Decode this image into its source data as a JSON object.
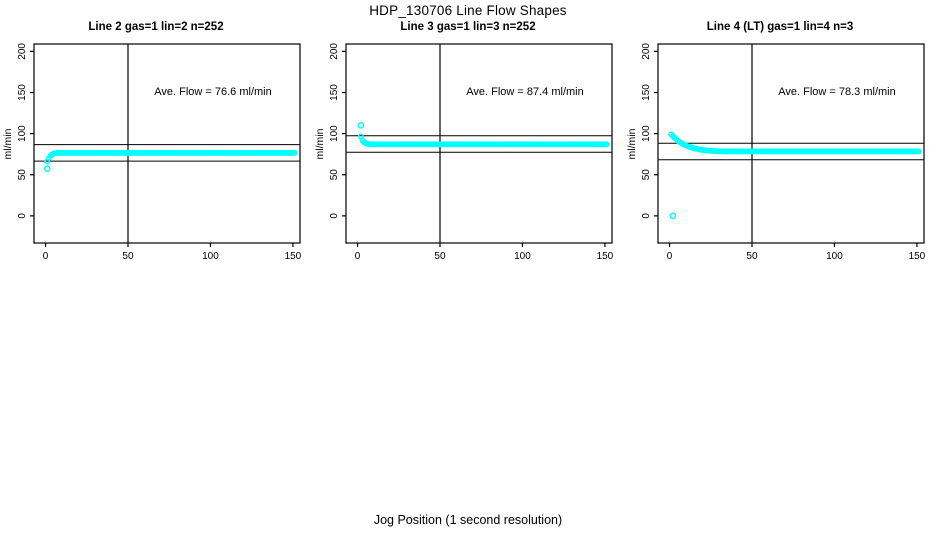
{
  "page": {
    "title": "HDP_130706  Line Flow Shapes",
    "xlabel": "Jog Position (1 second resolution)"
  },
  "style": {
    "point_color": "#00FFFF",
    "axis_color": "#000000",
    "background": "#FFFFFF"
  },
  "chart_data": [
    {
      "type": "scatter",
      "title": "Line 2 gas=1 lin=2 n=252",
      "annotation": "Ave. Flow =  76.6  ml/min",
      "ave_flow_ml_min": 76.6,
      "n": 252,
      "ylabel": "ml/min",
      "x_ticks": [
        0,
        50,
        100,
        150
      ],
      "y_ticks": [
        0,
        50,
        100,
        150,
        200
      ],
      "xlim": [
        -7,
        154.3
      ],
      "ylim": [
        -33,
        209
      ],
      "vline_x": 50,
      "hlines_y": [
        86.6,
        66.6
      ],
      "outlier_points": [
        [
          1,
          57.5
        ]
      ],
      "transient_points": [
        [
          1,
          66
        ],
        [
          2,
          70.3
        ],
        [
          3,
          73
        ],
        [
          4,
          74.8
        ],
        [
          5,
          75.9
        ],
        [
          6,
          76.3
        ]
      ],
      "plateau": {
        "x_from": 7,
        "x_to": 151,
        "step": 1,
        "y": 76.6
      }
    },
    {
      "type": "scatter",
      "title": "Line 3 gas=1 lin=3 n=252",
      "annotation": "Ave. Flow =  87.4  ml/min",
      "ave_flow_ml_min": 87.4,
      "n": 252,
      "ylabel": "ml/min",
      "x_ticks": [
        0,
        50,
        100,
        150
      ],
      "y_ticks": [
        0,
        50,
        100,
        150,
        200
      ],
      "xlim": [
        -7,
        154.3
      ],
      "ylim": [
        -33,
        209
      ],
      "vline_x": 50,
      "hlines_y": [
        97.4,
        77.4
      ],
      "outlier_points": [
        [
          2,
          110
        ]
      ],
      "transient_points": [
        [
          2,
          96.5
        ],
        [
          3,
          91.5
        ],
        [
          4,
          89.3
        ],
        [
          5,
          88.3
        ],
        [
          6,
          87.7
        ],
        [
          7,
          87.3
        ]
      ],
      "plateau": {
        "x_from": 8,
        "x_to": 151,
        "step": 1,
        "y": 87.0
      }
    },
    {
      "type": "scatter",
      "title": "Line 4 (LT) gas=1 lin=4 n=3",
      "annotation": "Ave. Flow =  78.3  ml/min",
      "ave_flow_ml_min": 78.3,
      "n": 3,
      "ylabel": "ml/min",
      "x_ticks": [
        0,
        50,
        100,
        150
      ],
      "y_ticks": [
        0,
        50,
        100,
        150,
        200
      ],
      "xlim": [
        -7,
        154.3
      ],
      "ylim": [
        -33,
        209
      ],
      "vline_x": 50,
      "hlines_y": [
        88.3,
        68.3
      ],
      "outlier_points": [
        [
          2,
          0
        ]
      ],
      "transient_points": [
        [
          1,
          99.2
        ],
        [
          2,
          97.0
        ],
        [
          3,
          95.0
        ],
        [
          4,
          93.2
        ],
        [
          5,
          91.5
        ],
        [
          6,
          90.0
        ],
        [
          7,
          88.7
        ],
        [
          8,
          87.5
        ],
        [
          9,
          86.5
        ],
        [
          10,
          85.5
        ],
        [
          11,
          84.7
        ],
        [
          12,
          83.9
        ],
        [
          13,
          83.3
        ],
        [
          14,
          82.7
        ],
        [
          15,
          82.1
        ],
        [
          16,
          81.7
        ],
        [
          17,
          81.2
        ],
        [
          18,
          80.8
        ],
        [
          19,
          80.5
        ],
        [
          20,
          80.2
        ],
        [
          21,
          79.9
        ],
        [
          22,
          79.7
        ],
        [
          23,
          79.5
        ],
        [
          24,
          79.3
        ],
        [
          25,
          79.1
        ],
        [
          26,
          79.0
        ],
        [
          27,
          78.9
        ],
        [
          28,
          78.8
        ],
        [
          29,
          78.7
        ],
        [
          30,
          78.6
        ],
        [
          31,
          78.5
        ],
        [
          32,
          78.5
        ],
        [
          33,
          78.4
        ],
        [
          34,
          78.4
        ]
      ],
      "plateau": {
        "x_from": 35,
        "x_to": 151,
        "step": 1,
        "y": 78.3
      }
    }
  ]
}
